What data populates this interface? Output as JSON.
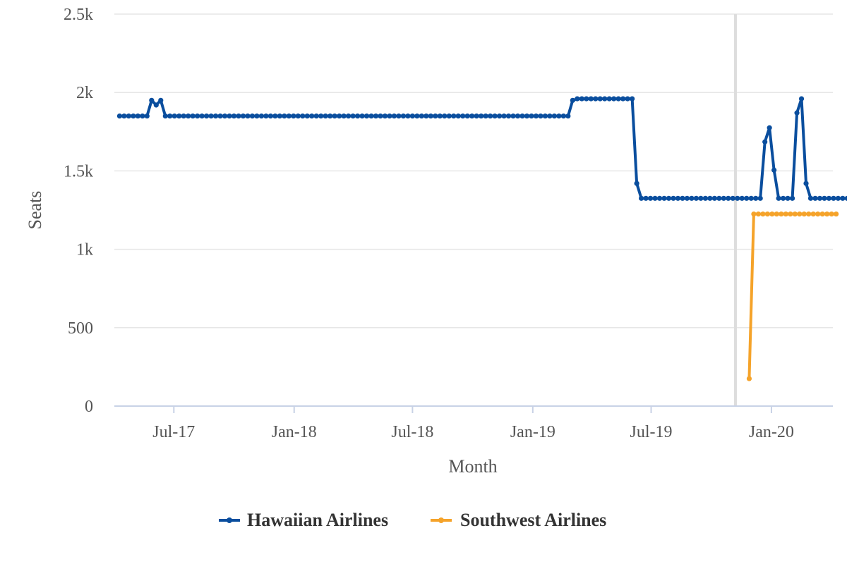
{
  "chart_data": {
    "type": "line",
    "xlabel": "Month",
    "ylabel": "Seats",
    "ylim": [
      0,
      2500
    ],
    "y_ticks": [
      {
        "value": 0,
        "label": "0"
      },
      {
        "value": 500,
        "label": "500"
      },
      {
        "value": 1000,
        "label": "1k"
      },
      {
        "value": 1500,
        "label": "1.5k"
      },
      {
        "value": 2000,
        "label": "2k"
      },
      {
        "value": 2500,
        "label": "2.5k"
      }
    ],
    "x_range": [
      "2017-04-01",
      "2020-04-04"
    ],
    "x_ticks": [
      {
        "date": "2017-07-01",
        "label": "Jul-17"
      },
      {
        "date": "2018-01-01",
        "label": "Jan-18"
      },
      {
        "date": "2018-07-01",
        "label": "Jul-18"
      },
      {
        "date": "2019-01-01",
        "label": "Jan-19"
      },
      {
        "date": "2019-07-01",
        "label": "Jul-19"
      },
      {
        "date": "2020-01-01",
        "label": "Jan-20"
      }
    ],
    "reference_line": {
      "date": "2019-11-07",
      "color": "#dddddd"
    },
    "grid": "horizontal",
    "legend_position": "bottom",
    "series": [
      {
        "name": "Hawaiian Airlines",
        "color": "#0a4e9e",
        "start": "2017-04-09",
        "step_days": 7,
        "values": [
          1850,
          1850,
          1850,
          1850,
          1850,
          1850,
          1850,
          1950,
          1920,
          1950,
          1850,
          1850,
          1850,
          1850,
          1850,
          1850,
          1850,
          1850,
          1850,
          1850,
          1850,
          1850,
          1850,
          1850,
          1850,
          1850,
          1850,
          1850,
          1850,
          1850,
          1850,
          1850,
          1850,
          1850,
          1850,
          1850,
          1850,
          1850,
          1850,
          1850,
          1850,
          1850,
          1850,
          1850,
          1850,
          1850,
          1850,
          1850,
          1850,
          1850,
          1850,
          1850,
          1850,
          1850,
          1850,
          1850,
          1850,
          1850,
          1850,
          1850,
          1850,
          1850,
          1850,
          1850,
          1850,
          1850,
          1850,
          1850,
          1850,
          1850,
          1850,
          1850,
          1850,
          1850,
          1850,
          1850,
          1850,
          1850,
          1850,
          1850,
          1850,
          1850,
          1850,
          1850,
          1850,
          1850,
          1850,
          1850,
          1850,
          1850,
          1850,
          1850,
          1850,
          1850,
          1850,
          1850,
          1850,
          1850,
          1850,
          1950,
          1960,
          1960,
          1960,
          1960,
          1960,
          1960,
          1960,
          1960,
          1960,
          1960,
          1960,
          1960,
          1960,
          1420,
          1325,
          1325,
          1325,
          1325,
          1325,
          1325,
          1325,
          1325,
          1325,
          1325,
          1325,
          1325,
          1325,
          1325,
          1325,
          1325,
          1325,
          1325,
          1325,
          1325,
          1325,
          1325,
          1325,
          1325,
          1325,
          1325,
          1325,
          1685,
          1775,
          1505,
          1325,
          1325,
          1325,
          1325,
          1870,
          1960,
          1420,
          1325,
          1325,
          1325,
          1325,
          1325,
          1325,
          1325,
          1325,
          1325,
          1325,
          1325,
          1325,
          1325,
          1325,
          1325,
          1325,
          1325,
          1325,
          1325,
          1325,
          1325,
          1325,
          1325,
          1325,
          1325,
          1325,
          1325
        ]
      },
      {
        "name": "Southwest Airlines",
        "color": "#f5a32a",
        "start": "2019-11-28",
        "step_days": 7,
        "values": [
          175,
          1225,
          1225,
          1225,
          1225,
          1225,
          1225,
          1225,
          1225,
          1225,
          1225,
          1225,
          1225,
          1225,
          1225,
          1225,
          1225,
          1225,
          1225,
          1225
        ]
      }
    ]
  }
}
